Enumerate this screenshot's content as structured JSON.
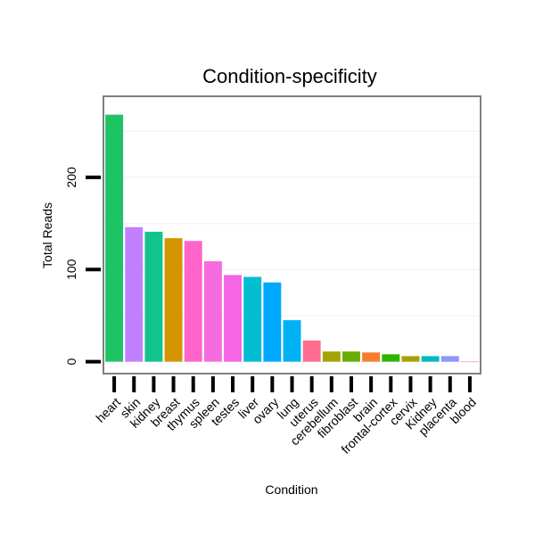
{
  "chart_data": {
    "type": "bar",
    "title": "Condition-specificity",
    "xlabel": "Condition",
    "ylabel": "Total Reads",
    "categories": [
      "heart",
      "skin",
      "kidney",
      "breast",
      "thymus",
      "spleen",
      "testes",
      "liver",
      "ovary",
      "lung",
      "uterus",
      "cerebellum",
      "fibroblast",
      "brain",
      "frontal-cortex",
      "cervix",
      "Kidney",
      "placenta",
      "blood"
    ],
    "values": [
      268,
      146,
      141,
      134,
      131,
      109,
      94,
      92,
      86,
      45,
      23,
      11,
      11,
      10,
      8,
      6,
      6,
      6,
      0
    ],
    "colors": [
      "#1ec463",
      "#c180ff",
      "#13c38c",
      "#d49400",
      "#ff64cb",
      "#f66cde",
      "#f466e3",
      "#00bdd0",
      "#00a9ff",
      "#00b2f3",
      "#ff6c90",
      "#a4a400",
      "#6aac00",
      "#f67d2e",
      "#2bb600",
      "#a6a000",
      "#00b9c4",
      "#8c95ff",
      "#ff61c3"
    ],
    "yticks": [
      0,
      100,
      200
    ],
    "ylim": [
      -12,
      287
    ],
    "grid": true
  }
}
